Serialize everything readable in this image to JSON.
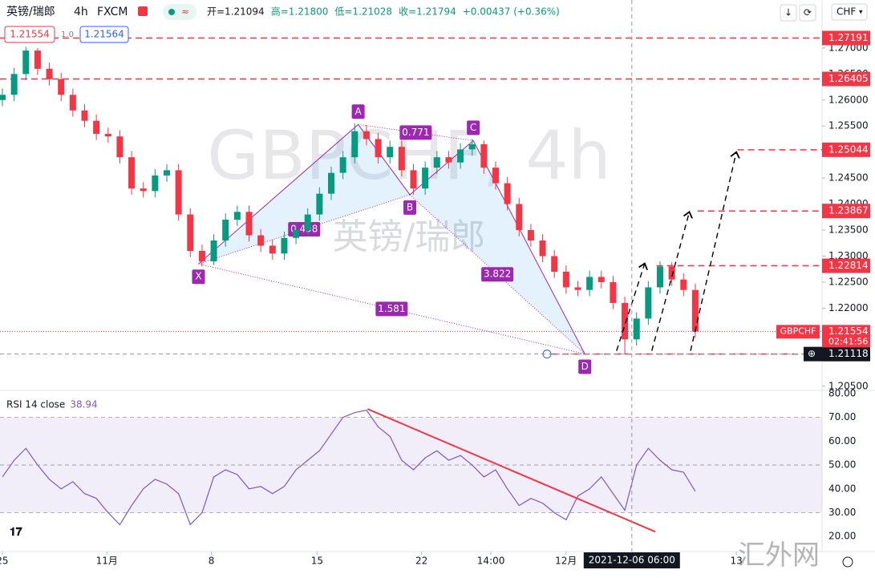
{
  "header": {
    "symbol": "英镑/瑞郎",
    "interval": "4h",
    "exchange": "FXCM",
    "ohlc": [
      "开=1.21094",
      "高=1.21800",
      "低=1.21028",
      "收=1.21794",
      "+0.00437 (+0.36%)"
    ],
    "currency": "CHF",
    "sell": "1.21554",
    "spread": "1.0",
    "buy": "1.21564",
    "watermark": "汇外网"
  },
  "chart_data": [
    {
      "type": "candlestick",
      "title": "GBPCHF, 4h",
      "subtitle": "英镑/瑞郎",
      "up_color": "#089981",
      "down_color": "#f23645",
      "xlim": [
        0,
        70
      ],
      "xticks": [
        {
          "value": 0.2,
          "label": "25"
        },
        {
          "value": 9.1,
          "label": "11月"
        },
        {
          "value": 18,
          "label": "8"
        },
        {
          "value": 27,
          "label": "15"
        },
        {
          "value": 35.9,
          "label": "22"
        },
        {
          "value": 41.8,
          "label": "14:00"
        },
        {
          "value": 48.2,
          "label": "12月"
        },
        {
          "value": 62.7,
          "label": "13"
        }
      ],
      "ylim": [
        1.2045,
        1.2746
      ],
      "yticks": [
        {
          "value": 1.27,
          "label": "1.27000"
        },
        {
          "value": 1.265,
          "label": "1.26500"
        },
        {
          "value": 1.26,
          "label": "1.26000"
        },
        {
          "value": 1.255,
          "label": "1.25500"
        },
        {
          "value": 1.245,
          "label": "1.24500"
        },
        {
          "value": 1.24,
          "label": "1.24000"
        },
        {
          "value": 1.235,
          "label": "1.23500"
        },
        {
          "value": 1.23,
          "label": "1.23000"
        },
        {
          "value": 1.225,
          "label": "1.22500"
        },
        {
          "value": 1.22,
          "label": "1.22000"
        },
        {
          "value": 1.205,
          "label": "1.20500"
        }
      ],
      "open": [
        1.26,
        1.261,
        1.265,
        1.2695,
        1.266,
        1.264,
        1.261,
        1.258,
        1.256,
        1.2535,
        1.253,
        1.249,
        1.243,
        1.2425,
        1.2455,
        1.2465,
        1.238,
        1.231,
        1.229,
        1.233,
        1.237,
        1.2385,
        1.234,
        1.232,
        1.2305,
        1.2335,
        1.235,
        1.238,
        1.242,
        1.246,
        1.249,
        1.254,
        1.2525,
        1.249,
        1.251,
        1.2465,
        1.243,
        1.247,
        1.249,
        1.248,
        1.2505,
        1.2515,
        1.247,
        1.244,
        1.24,
        1.235,
        1.233,
        1.23,
        1.227,
        1.224,
        1.2235,
        1.226,
        1.225,
        1.221,
        1.214,
        1.218,
        1.224,
        1.228,
        1.2255,
        1.2235
      ],
      "high": [
        1.2622,
        1.2662,
        1.2702,
        1.27,
        1.2672,
        1.2652,
        1.2622,
        1.2592,
        1.2572,
        1.2547,
        1.2542,
        1.2502,
        1.2442,
        1.2467,
        1.2477,
        1.2477,
        1.2392,
        1.2322,
        1.2342,
        1.2382,
        1.2397,
        1.2397,
        1.2352,
        1.2332,
        1.2347,
        1.2362,
        1.2392,
        1.2432,
        1.2472,
        1.2502,
        1.2555,
        1.2552,
        1.2537,
        1.2522,
        1.2522,
        1.2477,
        1.2482,
        1.2502,
        1.2502,
        1.2517,
        1.2525,
        1.2522,
        1.2482,
        1.2452,
        1.2412,
        1.2362,
        1.2342,
        1.2312,
        1.2282,
        1.2252,
        1.2272,
        1.2272,
        1.2262,
        1.2222,
        1.2192,
        1.2252,
        1.229,
        1.2288,
        1.2267,
        1.2247
      ],
      "low": [
        1.2588,
        1.2598,
        1.2638,
        1.2648,
        1.2628,
        1.2598,
        1.2568,
        1.2548,
        1.2523,
        1.2518,
        1.2478,
        1.2418,
        1.2413,
        1.2413,
        1.2443,
        1.2368,
        1.2298,
        1.228,
        1.2283,
        1.2318,
        1.2358,
        1.2328,
        1.2308,
        1.2293,
        1.2293,
        1.2323,
        1.2338,
        1.2368,
        1.2408,
        1.2448,
        1.2478,
        1.2513,
        1.2478,
        1.2478,
        1.2453,
        1.2418,
        1.2418,
        1.2458,
        1.2468,
        1.2468,
        1.2493,
        1.2458,
        1.2428,
        1.2388,
        1.2338,
        1.2318,
        1.2288,
        1.2258,
        1.2228,
        1.2223,
        1.2223,
        1.2238,
        1.2198,
        1.2112,
        1.2128,
        1.2168,
        1.2228,
        1.2243,
        1.2223,
        1.2143
      ],
      "close": [
        1.261,
        1.265,
        1.2695,
        1.266,
        1.264,
        1.261,
        1.258,
        1.256,
        1.2535,
        1.253,
        1.249,
        1.243,
        1.2425,
        1.2455,
        1.2465,
        1.238,
        1.231,
        1.229,
        1.233,
        1.237,
        1.2385,
        1.234,
        1.232,
        1.2305,
        1.2335,
        1.235,
        1.238,
        1.242,
        1.246,
        1.249,
        1.254,
        1.2525,
        1.249,
        1.251,
        1.2465,
        1.243,
        1.247,
        1.249,
        1.248,
        1.2505,
        1.2515,
        1.247,
        1.244,
        1.24,
        1.235,
        1.233,
        1.23,
        1.227,
        1.224,
        1.2235,
        1.226,
        1.225,
        1.221,
        1.214,
        1.218,
        1.224,
        1.228,
        1.2255,
        1.2235,
        1.2155
      ],
      "levels": {
        "color": "#f23645",
        "items": [
          {
            "price": 1.27191,
            "from": 0
          },
          {
            "price": 1.26405,
            "from": 0
          },
          {
            "price": 1.25044,
            "from": 62.8
          },
          {
            "price": 1.23867,
            "from": 59.4
          },
          {
            "price": 1.22814,
            "from": 55.9
          },
          {
            "price": 1.21118,
            "from": 47
          }
        ]
      },
      "pattern": {
        "color": "#9c27b0",
        "fill": "#2196f3",
        "points": [
          {
            "label": "X",
            "x": 16.9,
            "price": 1.2285
          },
          {
            "label": "A",
            "x": 30.5,
            "price": 1.2553
          },
          {
            "label": "B",
            "x": 34.9,
            "price": 1.2418
          },
          {
            "label": "C",
            "x": 40.3,
            "price": 1.2522
          },
          {
            "label": "D",
            "x": 49.8,
            "price": 1.2112
          }
        ],
        "ratios": [
          0.498,
          0.771,
          3.822,
          1.581
        ]
      },
      "projections": [
        {
          "from": [
            52.5,
            1.2118
          ],
          "to": [
            54.9,
            1.2286
          ]
        },
        {
          "from": [
            55.5,
            1.2118
          ],
          "to": [
            58.7,
            1.2385
          ]
        },
        {
          "from": [
            58.8,
            1.2118
          ],
          "to": [
            62.7,
            1.25
          ]
        }
      ],
      "last_price": {
        "symbol": "GBPCHF",
        "value": 1.21554,
        "countdown": "02:41:56"
      },
      "crosshair": {
        "x": 53.8,
        "label": "2021-12-06 06:00",
        "price": 1.21118
      }
    },
    {
      "type": "line",
      "title": "RSI 14 close",
      "color": "#7e57c2",
      "values": [
        45,
        52,
        57,
        50,
        44,
        40,
        43,
        38,
        36,
        30,
        25,
        33,
        40,
        44,
        42,
        38,
        25,
        30,
        45,
        48,
        46,
        40,
        41,
        38,
        41,
        48,
        52,
        56,
        63,
        70,
        72,
        73,
        66,
        62,
        52,
        48,
        53,
        56,
        52,
        54,
        50,
        45,
        48,
        40,
        33,
        36,
        34,
        30,
        27,
        37,
        40,
        45,
        38,
        31,
        50,
        57,
        52,
        48,
        47,
        38.94
      ],
      "ylim": [
        14.7,
        80.3
      ],
      "yticks": [
        {
          "value": 80,
          "label": "80.00"
        },
        {
          "value": 70,
          "label": "70.00"
        },
        {
          "value": 60,
          "label": "60.00"
        },
        {
          "value": 50,
          "label": "50.00"
        },
        {
          "value": 40,
          "label": "40.00"
        },
        {
          "value": 30,
          "label": "30.00"
        },
        {
          "value": 20,
          "label": "20.00"
        }
      ],
      "trendline": {
        "from": [
          31.3,
          73.5
        ],
        "to": [
          55.8,
          22
        ],
        "color": "#f23645"
      }
    }
  ]
}
